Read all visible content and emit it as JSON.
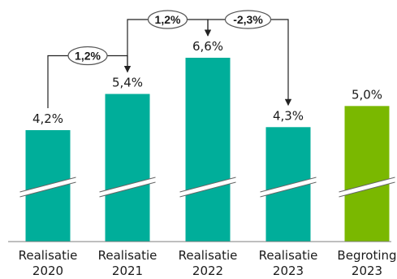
{
  "chart_data": {
    "type": "bar",
    "title": "",
    "xlabel": "",
    "ylabel": "",
    "ylim": [
      0,
      7
    ],
    "axis_break": true,
    "grid": false,
    "legend": "none",
    "categories": [
      [
        "Realisatie",
        "2020"
      ],
      [
        "Realisatie",
        "2021"
      ],
      [
        "Realisatie",
        "2022"
      ],
      [
        "Realisatie",
        "2023"
      ],
      [
        "Begroting",
        "2023"
      ]
    ],
    "values": [
      4.2,
      5.4,
      6.6,
      4.3,
      5.0
    ],
    "value_labels": [
      "4,2%",
      "5,4%",
      "6,6%",
      "4,3%",
      "5,0%"
    ],
    "bar_colors": [
      "#00AE9A",
      "#00AE9A",
      "#00AE9A",
      "#00AE9A",
      "#7AB800"
    ],
    "changes": [
      {
        "from": 0,
        "to": 1,
        "label": "1,2%"
      },
      {
        "from": 1,
        "to": 2,
        "label": "1,2%"
      },
      {
        "from": 2,
        "to": 3,
        "label": "-2,3%"
      }
    ]
  }
}
